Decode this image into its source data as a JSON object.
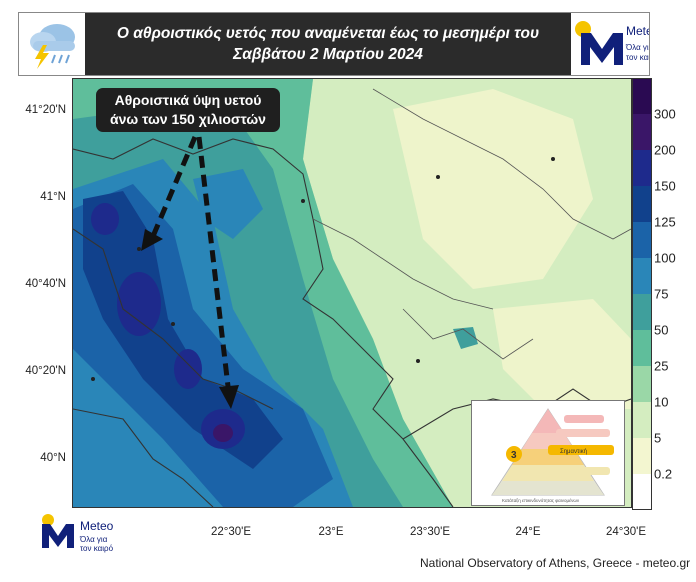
{
  "header": {
    "title_line1": "Ο αθροιστικός υετός που αναμένεται έως το μεσημέρι του",
    "title_line2": "Σαββάτου 2 Μαρτίου 2024",
    "weather_icon": "rain-cloud-lightning-icon"
  },
  "logo": {
    "brand": "Meteo",
    "tagline_1": "Όλα για",
    "tagline_2": "τον καιρό",
    "colors": {
      "navy": "#10207a",
      "sun": "#f5c400"
    }
  },
  "callout": {
    "line1": "Αθροιστικά ύψη υετού",
    "line2": "άνω των 150 χιλιοστών"
  },
  "map": {
    "lat_labels": [
      "41°20'N",
      "41°N",
      "40°40'N",
      "40°20'N",
      "40°N"
    ],
    "lon_labels": [
      "22°30'E",
      "23°E",
      "23°30'E",
      "24°E",
      "24°30'E"
    ]
  },
  "colorbar": {
    "labels": [
      "300",
      "200",
      "150",
      "125",
      "100",
      "75",
      "50",
      "25",
      "10",
      "5",
      "0.2"
    ],
    "colors": [
      "#2a0a52",
      "#3a1668",
      "#1e2a8c",
      "#11418c",
      "#1b63a8",
      "#2a86b8",
      "#3f9f9c",
      "#5fbe9b",
      "#9ad7a7",
      "#d4edc0",
      "#f3f6d0",
      "#ffffff"
    ]
  },
  "inset": {
    "level_number": "3",
    "level_label": "Σημαντική",
    "caption": "Κατάταξη επικινδυνότητας φαινομένων"
  },
  "footer": {
    "credit": "National Observatory of Athens, Greece - meteo.gr"
  }
}
